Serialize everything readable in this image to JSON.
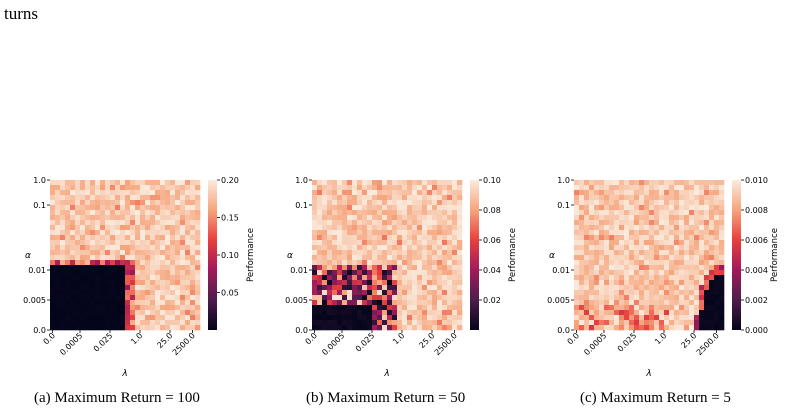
{
  "top_text": "turns",
  "captions": [
    "(a) Maximum Return = 100",
    "(b) Maximum Return = 50",
    "(c) Maximum Return = 5"
  ],
  "chart_data": [
    {
      "type": "heatmap",
      "xlabel": "λ",
      "ylabel": "α",
      "xticks": [
        "0.0",
        "0.0005",
        "0.025",
        "1.0",
        "25.0",
        "2500.0"
      ],
      "yticks": [
        "1.0",
        "0.1",
        "0.01",
        "0.005",
        "0.0"
      ],
      "colorbar_label": "Performance",
      "colorbar_ticks": [
        "0.20",
        "0.15",
        "0.10",
        "0.05"
      ],
      "colorbar_range": [
        0.0,
        0.2
      ],
      "colormap": [
        "#03051a",
        "#4c1d4b",
        "#a11a5b",
        "#e83f3f",
        "#f6a47c",
        "#faebdd"
      ],
      "pattern": "bottom-left-low"
    },
    {
      "type": "heatmap",
      "xlabel": "λ",
      "ylabel": "α",
      "xticks": [
        "0.0",
        "0.0005",
        "0.025",
        "1.0",
        "25.0",
        "2500.0"
      ],
      "yticks": [
        "1.0",
        "0.1",
        "0.01",
        "0.005",
        "0.0"
      ],
      "colorbar_label": "Performance",
      "colorbar_ticks": [
        "0.10",
        "0.08",
        "0.06",
        "0.04",
        "0.02"
      ],
      "colorbar_range": [
        0.0,
        0.1
      ],
      "colormap": [
        "#03051a",
        "#4c1d4b",
        "#a11a5b",
        "#e83f3f",
        "#f6a47c",
        "#faebdd"
      ],
      "pattern": "bottom-left-mixed"
    },
    {
      "type": "heatmap",
      "xlabel": "λ",
      "ylabel": "α",
      "xticks": [
        "0.0",
        "0.0005",
        "0.025",
        "1.0",
        "25.0",
        "2500.0"
      ],
      "yticks": [
        "1.0",
        "0.1",
        "0.01",
        "0.005",
        "0.0"
      ],
      "colorbar_label": "Performance",
      "colorbar_ticks": [
        "0.010",
        "0.008",
        "0.006",
        "0.004",
        "0.002",
        "0.000"
      ],
      "colorbar_range": [
        0.0,
        0.01
      ],
      "colormap": [
        "#03051a",
        "#4c1d4b",
        "#a11a5b",
        "#e83f3f",
        "#f6a47c",
        "#faebdd"
      ],
      "pattern": "bottom-right-low"
    }
  ]
}
